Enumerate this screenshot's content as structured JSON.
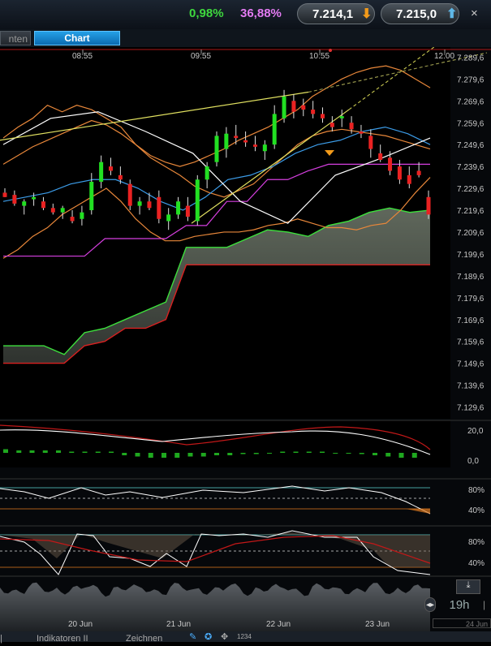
{
  "header": {
    "change_percent": "0,98%",
    "sentiment_percent": "36,88%",
    "sell_price": "7.214,1",
    "buy_price": "7.215,0",
    "close_label": "×",
    "colors": {
      "change": "#3ed83e",
      "sentiment": "#e37bf2",
      "sell_arrow": "#f29a1a",
      "buy_arrow": "#5fb8e8"
    }
  },
  "tabs": [
    {
      "label": "nten"
    },
    {
      "label": "Chart"
    }
  ],
  "bottom_tabs": [
    "Indikatoren II",
    "Zeichnen"
  ],
  "side": {
    "timeframe": "19h",
    "date_stub": "24 Jun",
    "bottom_stub": "|"
  },
  "chart_data": [
    {
      "type": "candlestick",
      "time_ticks": [
        "08:55",
        "09:55",
        "10:55",
        "12:00"
      ],
      "y_ticks": [
        "7.289,6",
        "7.279,6",
        "7.269,6",
        "7.259,6",
        "7.249,6",
        "7.239,6",
        "7.229,6",
        "7.219,6",
        "7.209,6",
        "7.199,6",
        "7.189,6",
        "7.179,6",
        "7.169,6",
        "7.159,6",
        "7.149,6",
        "7.139,6",
        "7.129,6"
      ],
      "ylim": [
        7124.6,
        7294.6
      ],
      "candles": [
        [
          7228,
          7230,
          7226,
          7226
        ],
        [
          7227,
          7229,
          7222,
          7223
        ],
        [
          7222,
          7225,
          7218,
          7224
        ],
        [
          7225,
          7228,
          7222,
          7226
        ],
        [
          7224,
          7226,
          7220,
          7221
        ],
        [
          7221,
          7223,
          7218,
          7219
        ],
        [
          7219,
          7222,
          7216,
          7221
        ],
        [
          7217,
          7220,
          7214,
          7215
        ],
        [
          7216,
          7222,
          7213,
          7219
        ],
        [
          7220,
          7237,
          7218,
          7233
        ],
        [
          7233,
          7245,
          7230,
          7242
        ],
        [
          7240,
          7244,
          7236,
          7238
        ],
        [
          7236,
          7240,
          7232,
          7234
        ],
        [
          7232,
          7234,
          7220,
          7222
        ],
        [
          7222,
          7226,
          7218,
          7224
        ],
        [
          7224,
          7228,
          7220,
          7221
        ],
        [
          7226,
          7229,
          7214,
          7216
        ],
        [
          7215,
          7221,
          7211,
          7218
        ],
        [
          7218,
          7226,
          7216,
          7224
        ],
        [
          7222,
          7226,
          7215,
          7217
        ],
        [
          7215,
          7236,
          7213,
          7234
        ],
        [
          7234,
          7242,
          7230,
          7240
        ],
        [
          7242,
          7256,
          7240,
          7254
        ],
        [
          7248,
          7258,
          7244,
          7255
        ],
        [
          7254,
          7259,
          7250,
          7253
        ],
        [
          7252,
          7256,
          7249,
          7251
        ],
        [
          7250,
          7254,
          7247,
          7249
        ],
        [
          7247,
          7252,
          7243,
          7250
        ],
        [
          7250,
          7268,
          7248,
          7264
        ],
        [
          7262,
          7275,
          7260,
          7272
        ],
        [
          7270,
          7273,
          7262,
          7265
        ],
        [
          7268,
          7271,
          7263,
          7266
        ],
        [
          7266,
          7270,
          7262,
          7264
        ],
        [
          7264,
          7267,
          7260,
          7262
        ],
        [
          7260,
          7263,
          7256,
          7258
        ],
        [
          7262,
          7266,
          7258,
          7263
        ],
        [
          7260,
          7263,
          7255,
          7257
        ],
        [
          7256,
          7259,
          7253,
          7255
        ],
        [
          7254,
          7257,
          7244,
          7248
        ],
        [
          7246,
          7250,
          7242,
          7243
        ],
        [
          7244,
          7247,
          7236,
          7238
        ],
        [
          7240,
          7243,
          7232,
          7234
        ],
        [
          7236,
          7240,
          7230,
          7232
        ],
        [
          7238,
          7242,
          7235,
          7236
        ],
        [
          7226,
          7229,
          7216,
          7218
        ]
      ],
      "bollinger_upper": [
        7253,
        7258,
        7262,
        7268,
        7265,
        7268,
        7266,
        7262,
        7258,
        7250,
        7245,
        7242,
        7240,
        7242,
        7245,
        7248,
        7252,
        7255,
        7258,
        7262,
        7266,
        7272,
        7276,
        7280,
        7283,
        7285,
        7286,
        7284,
        7280,
        7276
      ],
      "bollinger_mid": [
        7241,
        7245,
        7249,
        7252,
        7255,
        7258,
        7261,
        7259,
        7255,
        7250,
        7244,
        7240,
        7236,
        7231,
        7228,
        7226,
        7229,
        7232,
        7238,
        7244,
        7250,
        7254,
        7256,
        7257,
        7256,
        7255,
        7254,
        7252,
        7250,
        7248
      ],
      "bollinger_lower": [
        7198,
        7202,
        7208,
        7212,
        7218,
        7222,
        7226,
        7230,
        7224,
        7216,
        7210,
        7206,
        7206,
        7208,
        7209,
        7210,
        7210,
        7211,
        7213,
        7214,
        7216,
        7214,
        7212,
        7212,
        7211,
        7213,
        7214,
        7220,
        7228,
        7235
      ],
      "kijun": [
        7199,
        7199,
        7199,
        7199,
        7199,
        7207,
        7207,
        7207,
        7207,
        7213,
        7213,
        7224,
        7224,
        7234,
        7234,
        7238,
        7241,
        7241,
        7241,
        7241,
        7241,
        7241
      ],
      "tenkan": [
        7224,
        7226,
        7228,
        7232,
        7234,
        7234,
        7230,
        7224,
        7220,
        7226,
        7234,
        7236,
        7240,
        7246,
        7250,
        7252,
        7256,
        7258,
        7255,
        7250
      ],
      "cloud_green": [
        7158,
        7158,
        7158,
        7154,
        7164,
        7166,
        7170,
        7174,
        7178,
        7203,
        7203,
        7203,
        7207,
        7211,
        7210,
        7208,
        7213,
        7215,
        7219,
        7221,
        7219,
        7220
      ],
      "cloud_red": [
        7150,
        7150,
        7150,
        7150,
        7158,
        7160,
        7166,
        7166,
        7170,
        7195,
        7195,
        7195,
        7195,
        7195,
        7195,
        7195,
        7195,
        7195,
        7195,
        7195,
        7195,
        7195
      ],
      "chikou": [
        7250,
        7262,
        7265,
        7256,
        7246,
        7224,
        7214,
        7236,
        7244,
        7253
      ]
    },
    {
      "type": "oscillator",
      "y_ticks": [
        "20,0",
        "0,0"
      ],
      "histogram": [
        3,
        2,
        2,
        2,
        2,
        1,
        1,
        1,
        1,
        -2,
        -3,
        -4,
        -4,
        -4,
        -3,
        -3,
        -2,
        -2,
        -1,
        -1,
        0,
        1,
        1,
        1,
        1,
        0,
        0,
        -1,
        -2,
        -3,
        -4,
        -4
      ]
    },
    {
      "type": "line",
      "y_ticks": [
        "80%",
        "40%"
      ]
    },
    {
      "type": "line",
      "y_ticks": [
        "80%",
        "40%"
      ]
    },
    {
      "type": "area",
      "x_ticks": [
        "20 Jun",
        "21 Jun",
        "22 Jun",
        "23 Jun"
      ]
    }
  ]
}
